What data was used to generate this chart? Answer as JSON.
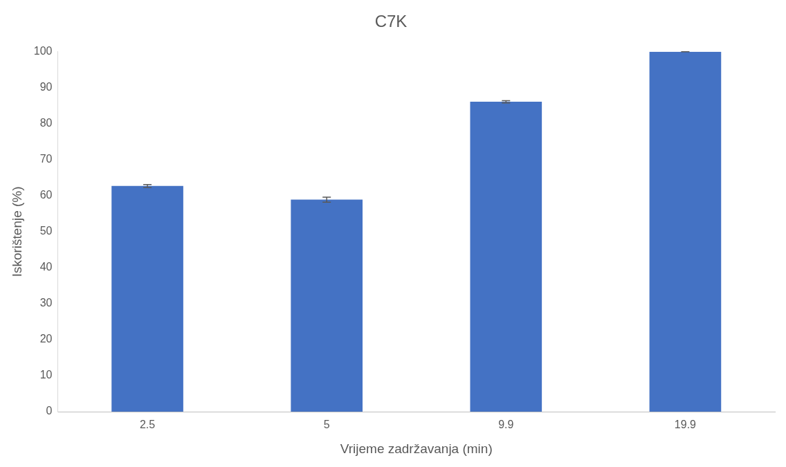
{
  "chart_data": {
    "type": "bar",
    "title": "C7K",
    "xlabel": "Vrijeme zadržavanja (min)",
    "ylabel": "Iskorištenje (%)",
    "categories": [
      "2.5",
      "5",
      "9.9",
      "19.9"
    ],
    "values": [
      62.7,
      58.9,
      86.1,
      100
    ],
    "errors": [
      0.4,
      0.7,
      0.3,
      0
    ],
    "color": "#4472c4",
    "ylim": [
      0,
      100
    ],
    "yticks": [
      0,
      10,
      20,
      30,
      40,
      50,
      60,
      70,
      80,
      90,
      100
    ],
    "grid": false,
    "legend": false
  }
}
